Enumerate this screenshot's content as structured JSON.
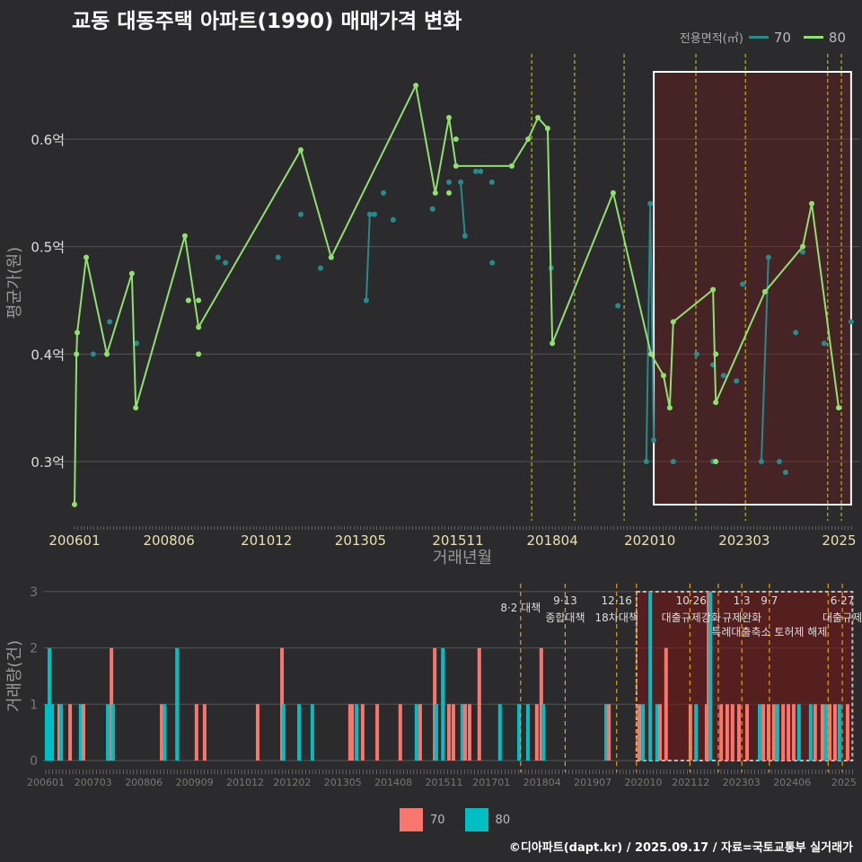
{
  "title": "교동 대동주택 아파트(1990) 매매가격 변화",
  "legend_top": {
    "title": "전용면적(㎡)",
    "items": [
      {
        "label": "70",
        "color": "#2a8a8a"
      },
      {
        "label": "80",
        "color": "#90e070"
      }
    ]
  },
  "legend_bottom": {
    "items": [
      {
        "label": "70",
        "color": "#f8766d"
      },
      {
        "label": "80",
        "color": "#00bfc4"
      }
    ]
  },
  "caption": "©디아파트(dapt.kr) / 2025.09.17 / 자료=국토교통부 실거래가",
  "chart_data": [
    {
      "type": "line",
      "title": "교동 대동주택 아파트(1990) 매매가격 변화",
      "xlabel": "거래년월",
      "ylabel": "평균가(원)",
      "xlim": [
        2006.0,
        2025.9
      ],
      "ylim": [
        0.24,
        0.67
      ],
      "yticks": [
        {
          "v": 0.3,
          "label": "0.3억"
        },
        {
          "v": 0.4,
          "label": "0.4억"
        },
        {
          "v": 0.5,
          "label": "0.5억"
        },
        {
          "v": 0.6,
          "label": "0.6억"
        }
      ],
      "xticks": [
        {
          "v": 2006.0,
          "label": "200601"
        },
        {
          "v": 2008.42,
          "label": "200806"
        },
        {
          "v": 2010.92,
          "label": "201012"
        },
        {
          "v": 2013.33,
          "label": "201305"
        },
        {
          "v": 2015.83,
          "label": "201511"
        },
        {
          "v": 2018.25,
          "label": "201804"
        },
        {
          "v": 2020.75,
          "label": "202010"
        },
        {
          "v": 2023.17,
          "label": "202303"
        },
        {
          "v": 2025.6,
          "label": "2025"
        }
      ],
      "policy_lines": [
        2017.72,
        2018.82,
        2020.09,
        2021.93,
        2023.2,
        2025.31,
        2025.66
      ],
      "highlight": [
        2020.85,
        2025.91
      ],
      "series": [
        {
          "name": "80",
          "color": "#90e070",
          "connected": true,
          "points": [
            [
              2006.0,
              0.26
            ],
            [
              2006.05,
              0.4
            ],
            [
              2006.07,
              0.42
            ],
            [
              2006.3,
              0.49
            ],
            [
              2006.83,
              0.4
            ],
            [
              2007.47,
              0.475
            ],
            [
              2007.57,
              0.35
            ],
            [
              2008.83,
              0.51
            ],
            [
              2009.18,
              0.425
            ],
            [
              2011.8,
              0.59
            ],
            [
              2012.58,
              0.49
            ],
            [
              2014.75,
              0.65
            ],
            [
              2015.25,
              0.55
            ],
            [
              2015.6,
              0.62
            ],
            [
              2015.78,
              0.575
            ],
            [
              2017.21,
              0.575
            ],
            [
              2017.63,
              0.6
            ],
            [
              2017.88,
              0.62
            ],
            [
              2018.13,
              0.61
            ],
            [
              2018.25,
              0.41
            ],
            [
              2019.81,
              0.55
            ],
            [
              2020.78,
              0.4
            ],
            [
              2021.1,
              0.38
            ],
            [
              2021.26,
              0.35
            ],
            [
              2021.35,
              0.43
            ],
            [
              2022.37,
              0.46
            ],
            [
              2022.44,
              0.355
            ],
            [
              2023.7,
              0.458
            ],
            [
              2024.67,
              0.5
            ],
            [
              2024.9,
              0.54
            ],
            [
              2025.59,
              0.35
            ]
          ],
          "extra_points": [
            [
              2008.92,
              0.45
            ],
            [
              2009.18,
              0.45
            ],
            [
              2009.18,
              0.4
            ],
            [
              2015.78,
              0.6
            ],
            [
              2015.6,
              0.55
            ],
            [
              2022.44,
              0.4
            ],
            [
              2022.44,
              0.3
            ]
          ]
        },
        {
          "name": "70",
          "color": "#2a8a8a",
          "connected": false,
          "points": [
            [
              2006.48,
              0.4
            ],
            [
              2006.9,
              0.43
            ],
            [
              2007.59,
              0.41
            ],
            [
              2008.92,
              0.45
            ],
            [
              2009.68,
              0.49
            ],
            [
              2009.87,
              0.485
            ],
            [
              2011.22,
              0.49
            ],
            [
              2011.8,
              0.53
            ],
            [
              2012.31,
              0.48
            ],
            [
              2013.92,
              0.55
            ],
            [
              2014.17,
              0.525
            ],
            [
              2015.18,
              0.535
            ],
            [
              2015.6,
              0.56
            ],
            [
              2016.29,
              0.57
            ],
            [
              2016.41,
              0.57
            ],
            [
              2016.7,
              0.56
            ],
            [
              2016.71,
              0.485
            ],
            [
              2018.22,
              0.48
            ],
            [
              2019.93,
              0.445
            ],
            [
              2021.35,
              0.3
            ],
            [
              2021.95,
              0.4
            ],
            [
              2022.37,
              0.39
            ],
            [
              2022.37,
              0.3
            ],
            [
              2022.64,
              0.38
            ],
            [
              2022.97,
              0.375
            ],
            [
              2023.13,
              0.465
            ],
            [
              2024.07,
              0.3
            ],
            [
              2024.23,
              0.29
            ],
            [
              2024.49,
              0.42
            ],
            [
              2024.67,
              0.495
            ],
            [
              2025.22,
              0.41
            ],
            [
              2025.91,
              0.43
            ]
          ],
          "segments": [
            [
              [
                2013.48,
                0.45
              ],
              [
                2013.57,
                0.53
              ],
              [
                2013.69,
                0.53
              ]
            ],
            [
              [
                2015.9,
                0.56
              ],
              [
                2016.01,
                0.51
              ]
            ],
            [
              [
                2020.66,
                0.3
              ],
              [
                2020.76,
                0.54
              ],
              [
                2020.85,
                0.32
              ]
            ],
            [
              [
                2023.61,
                0.3
              ],
              [
                2023.79,
                0.49
              ]
            ]
          ]
        }
      ]
    },
    {
      "type": "bar",
      "ylabel": "거래량(건)",
      "xlim": [
        2006.0,
        2025.9
      ],
      "ylim": [
        0,
        3
      ],
      "yticks": [
        0,
        1,
        2,
        3
      ],
      "xticks": [
        {
          "v": 2006.0,
          "label": "200601"
        },
        {
          "v": 2007.17,
          "label": "200703"
        },
        {
          "v": 2008.42,
          "label": "200806"
        },
        {
          "v": 2009.67,
          "label": "200909"
        },
        {
          "v": 2010.92,
          "label": "201012"
        },
        {
          "v": 2012.08,
          "label": "201202"
        },
        {
          "v": 2013.33,
          "label": "201305"
        },
        {
          "v": 2014.58,
          "label": "201408"
        },
        {
          "v": 2015.83,
          "label": "201511"
        },
        {
          "v": 2017.0,
          "label": "201701"
        },
        {
          "v": 2018.25,
          "label": "201804"
        },
        {
          "v": 2019.5,
          "label": "201907"
        },
        {
          "v": 2020.75,
          "label": "202010"
        },
        {
          "v": 2021.92,
          "label": "202112"
        },
        {
          "v": 2023.17,
          "label": "202303"
        },
        {
          "v": 2024.42,
          "label": "202406"
        },
        {
          "v": 2025.7,
          "label": "2025"
        }
      ],
      "highlight": [
        2020.58,
        2025.91
      ],
      "policy_lines": [
        2017.72,
        2018.82,
        2020.09,
        2020.58,
        2021.9,
        2022.6,
        2023.18,
        2023.86,
        2025.31,
        2025.66
      ],
      "annotations": [
        {
          "x": 2017.72,
          "date": "",
          "text": "8·2 대책"
        },
        {
          "x": 2018.82,
          "date": "9·13",
          "text": "종합대책"
        },
        {
          "x": 2020.09,
          "date": "12·16",
          "text": "18차대책"
        },
        {
          "x": 2021.93,
          "date": "10·26",
          "text": "대출규제강화"
        },
        {
          "x": 2023.18,
          "date": "1·3",
          "text": "규제완화"
        },
        {
          "x": 2023.86,
          "date": "9·7",
          "text": "특례대출축소 토허제 해제"
        },
        {
          "x": 2025.66,
          "date": "6·27",
          "text": "대출규제"
        }
      ],
      "bars": [
        [
          2006.02,
          "80",
          1
        ],
        [
          2006.09,
          "80",
          2
        ],
        [
          2006.16,
          "80",
          1
        ],
        [
          2006.33,
          "70",
          1
        ],
        [
          2006.38,
          "80",
          1
        ],
        [
          2006.6,
          "70",
          1
        ],
        [
          2006.86,
          "80",
          1
        ],
        [
          2006.93,
          "70",
          1
        ],
        [
          2007.53,
          "80",
          1
        ],
        [
          2007.62,
          "70",
          2
        ],
        [
          2007.66,
          "80",
          1
        ],
        [
          2008.86,
          "70",
          1
        ],
        [
          2008.93,
          "80",
          1
        ],
        [
          2009.24,
          "80",
          2
        ],
        [
          2009.72,
          "70",
          1
        ],
        [
          2009.92,
          "70",
          1
        ],
        [
          2011.23,
          "70",
          1
        ],
        [
          2011.83,
          "70",
          2
        ],
        [
          2011.87,
          "80",
          1
        ],
        [
          2012.25,
          "80",
          1
        ],
        [
          2012.58,
          "80",
          1
        ],
        [
          2013.51,
          "70",
          1
        ],
        [
          2013.56,
          "70",
          1
        ],
        [
          2013.67,
          "80",
          1
        ],
        [
          2013.82,
          "70",
          1
        ],
        [
          2014.18,
          "70",
          1
        ],
        [
          2014.75,
          "70",
          1
        ],
        [
          2015.15,
          "80",
          1
        ],
        [
          2015.24,
          "70",
          1
        ],
        [
          2015.6,
          "70",
          2
        ],
        [
          2015.64,
          "80",
          1
        ],
        [
          2015.8,
          "80",
          2
        ],
        [
          2015.95,
          "70",
          1
        ],
        [
          2016.06,
          "70",
          1
        ],
        [
          2016.28,
          "80",
          1
        ],
        [
          2016.35,
          "70",
          1
        ],
        [
          2016.46,
          "70",
          1
        ],
        [
          2016.7,
          "70",
          2
        ],
        [
          2017.21,
          "80",
          1
        ],
        [
          2017.68,
          "80",
          1
        ],
        [
          2017.9,
          "80",
          1
        ],
        [
          2018.12,
          "70",
          1
        ],
        [
          2018.23,
          "70",
          2
        ],
        [
          2018.28,
          "80",
          1
        ],
        [
          2019.83,
          "80",
          1
        ],
        [
          2019.9,
          "70",
          1
        ],
        [
          2020.65,
          "70",
          1
        ],
        [
          2020.74,
          "80",
          1
        ],
        [
          2020.92,
          "80",
          3
        ],
        [
          2021.09,
          "80",
          1
        ],
        [
          2021.16,
          "70",
          1
        ],
        [
          2021.31,
          "70",
          2
        ],
        [
          2021.91,
          "70",
          1
        ],
        [
          2022.05,
          "80",
          1
        ],
        [
          2022.31,
          "70",
          1
        ],
        [
          2022.36,
          "70",
          3
        ],
        [
          2022.4,
          "80",
          3
        ],
        [
          2022.67,
          "70",
          1
        ],
        [
          2022.82,
          "70",
          1
        ],
        [
          2022.95,
          "70",
          1
        ],
        [
          2023.11,
          "70",
          1
        ],
        [
          2023.31,
          "70",
          1
        ],
        [
          2023.62,
          "80",
          1
        ],
        [
          2023.71,
          "70",
          1
        ],
        [
          2023.84,
          "70",
          1
        ],
        [
          2023.97,
          "70",
          1
        ],
        [
          2024.06,
          "80",
          1
        ],
        [
          2024.2,
          "70",
          1
        ],
        [
          2024.33,
          "70",
          1
        ],
        [
          2024.46,
          "70",
          1
        ],
        [
          2024.59,
          "80",
          1
        ],
        [
          2024.88,
          "80",
          1
        ],
        [
          2024.99,
          "70",
          1
        ],
        [
          2025.17,
          "70",
          1
        ],
        [
          2025.26,
          "80",
          1
        ],
        [
          2025.35,
          "70",
          1
        ],
        [
          2025.48,
          "70",
          1
        ],
        [
          2025.59,
          "80",
          1
        ],
        [
          2025.79,
          "70",
          1
        ]
      ]
    }
  ]
}
